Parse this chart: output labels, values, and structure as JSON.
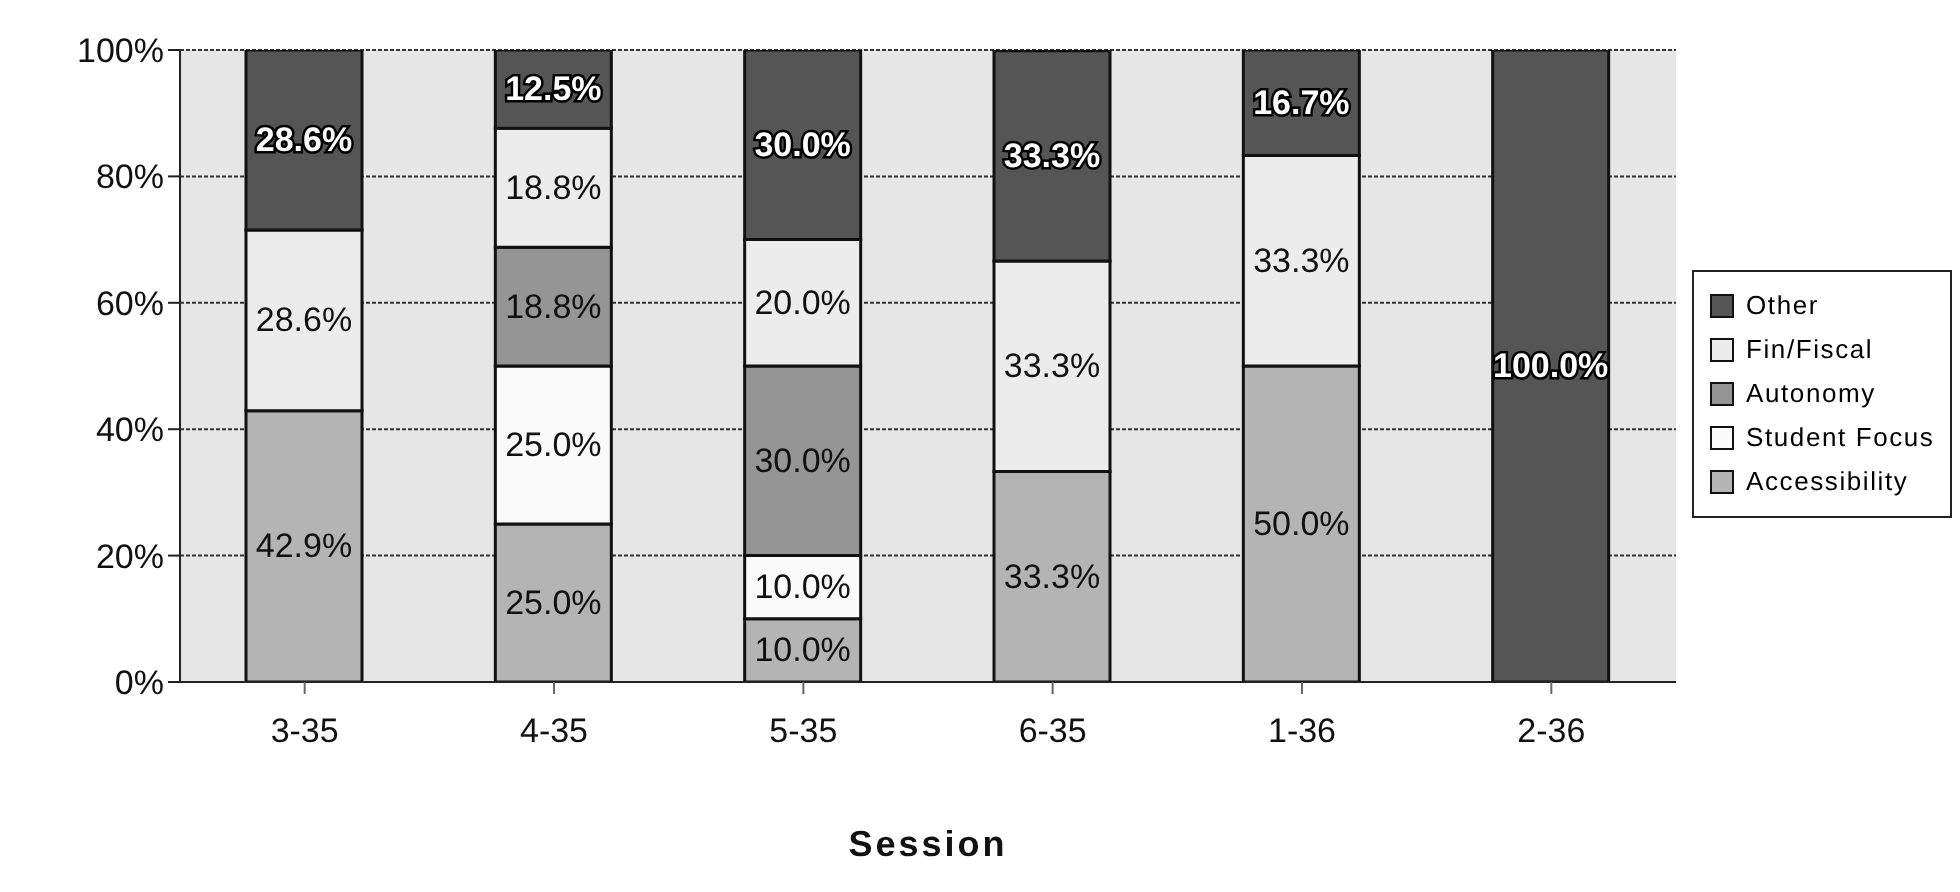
{
  "chart_data": {
    "type": "bar",
    "stacked": true,
    "xlabel": "Session",
    "categories": [
      "3-35",
      "4-35",
      "5-35",
      "6-35",
      "1-36",
      "2-36"
    ],
    "series": [
      {
        "name": "Accessibility",
        "color": "#b4b4b4",
        "values": [
          42.9,
          25.0,
          10.0,
          33.3,
          50.0,
          0
        ],
        "value_labels": [
          "42.9%",
          "25.0%",
          "10.0%",
          "33.3%",
          "50.0%",
          null
        ]
      },
      {
        "name": "Student Focus",
        "color": "#fafafa",
        "values": [
          0,
          25.0,
          10.0,
          0,
          0,
          0
        ],
        "value_labels": [
          null,
          "25.0%",
          "10.0%",
          null,
          null,
          null
        ]
      },
      {
        "name": "Autonomy",
        "color": "#959595",
        "values": [
          0,
          18.8,
          30.0,
          0,
          0,
          0
        ],
        "value_labels": [
          null,
          "18.8%",
          "30.0%",
          null,
          null,
          null
        ]
      },
      {
        "name": "Fin/Fiscal",
        "color": "#ececec",
        "values": [
          28.6,
          18.8,
          20.0,
          33.3,
          33.3,
          0
        ],
        "value_labels": [
          "28.6%",
          "18.8%",
          "20.0%",
          "33.3%",
          "33.3%",
          null
        ]
      },
      {
        "name": "Other",
        "color": "#555555",
        "values": [
          28.6,
          12.5,
          30.0,
          33.3,
          16.7,
          100.0
        ],
        "value_labels": [
          "28.6%",
          "12.5%",
          "30.0%",
          "33.3%",
          "16.7%",
          "100.0%"
        ]
      }
    ],
    "ylim": [
      0,
      100
    ],
    "yticks": [
      {
        "value": 0,
        "label": "0%"
      },
      {
        "value": 20,
        "label": "20%"
      },
      {
        "value": 40,
        "label": "40%"
      },
      {
        "value": 60,
        "label": "60%"
      },
      {
        "value": 80,
        "label": "80%"
      },
      {
        "value": 100,
        "label": "100%"
      }
    ],
    "grid": "y",
    "legend": "right"
  }
}
